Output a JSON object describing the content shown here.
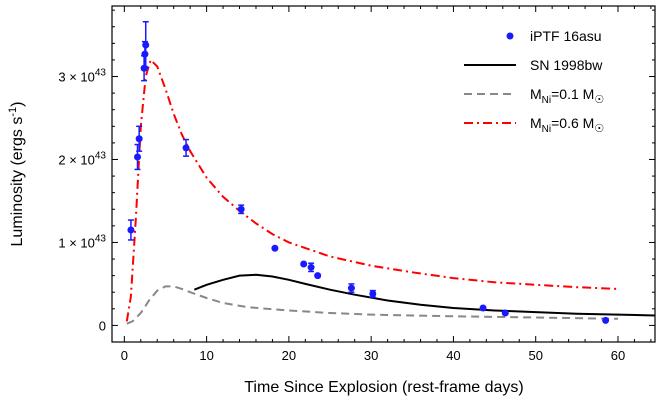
{
  "chart_data": {
    "type": "scatter",
    "xlabel": "Time Since Explosion (rest-frame days)",
    "ylabel": "Luminosity (ergs s",
    "ylabel_sup": "-1",
    "ylabel_close": ")",
    "xlim": [
      -1.5,
      64.5
    ],
    "ylim": [
      -0.2,
      3.85
    ],
    "x_ticks": [
      0,
      10,
      20,
      30,
      40,
      50,
      60
    ],
    "y_ticks": [
      {
        "value": 0,
        "label": "0",
        "exp": ""
      },
      {
        "value": 1,
        "label": "1 × 10",
        "exp": "43"
      },
      {
        "value": 2,
        "label": "2 × 10",
        "exp": "43"
      },
      {
        "value": 3,
        "label": "3 × 10",
        "exp": "43"
      }
    ],
    "y_unit": "10^43 erg/s",
    "grid": false,
    "legend_placement": "top-right",
    "legend": [
      {
        "key": "obs",
        "text": "iPTF 16asu",
        "sub": "",
        "suffix": ""
      },
      {
        "key": "sn98",
        "text": "SN 1998bw",
        "sub": "",
        "suffix": ""
      },
      {
        "key": "ni01",
        "text": "M",
        "sub": "Ni",
        "suffix": "=0.1 M",
        "sun": "☉"
      },
      {
        "key": "ni06",
        "text": "M",
        "sub": "Ni",
        "suffix": "=0.6 M",
        "sun": "☉"
      }
    ],
    "colors": {
      "obs": "#1a1aff",
      "sn98": "#000000",
      "ni01": "#888888",
      "ni06": "#ff0000"
    },
    "series": [
      {
        "name": "iPTF 16asu",
        "key": "obs",
        "style": "points",
        "points": [
          {
            "x": 0.8,
            "y": 1.15,
            "err": 0.12
          },
          {
            "x": 1.6,
            "y": 2.03,
            "err": 0.15
          },
          {
            "x": 1.8,
            "y": 2.25,
            "err": 0.15
          },
          {
            "x": 2.4,
            "y": 3.1,
            "err": 0.15
          },
          {
            "x": 2.5,
            "y": 3.27,
            "err": 0.15
          },
          {
            "x": 2.6,
            "y": 3.38,
            "err": 0.28
          },
          {
            "x": 7.5,
            "y": 2.14,
            "err": 0.1
          },
          {
            "x": 14.2,
            "y": 1.4,
            "err": 0.05
          },
          {
            "x": 18.3,
            "y": 0.93,
            "err": 0.0
          },
          {
            "x": 21.8,
            "y": 0.74,
            "err": 0.0
          },
          {
            "x": 22.7,
            "y": 0.7,
            "err": 0.05
          },
          {
            "x": 23.5,
            "y": 0.6,
            "err": 0.0
          },
          {
            "x": 27.6,
            "y": 0.45,
            "err": 0.05
          },
          {
            "x": 30.2,
            "y": 0.38,
            "err": 0.04
          },
          {
            "x": 43.6,
            "y": 0.21,
            "err": 0.0
          },
          {
            "x": 46.3,
            "y": 0.15,
            "err": 0.0
          },
          {
            "x": 58.5,
            "y": 0.06,
            "err": 0.0
          }
        ]
      },
      {
        "name": "SN 1998bw",
        "key": "sn98",
        "style": "solid",
        "points": [
          [
            8.5,
            0.43
          ],
          [
            10,
            0.49
          ],
          [
            12,
            0.55
          ],
          [
            14,
            0.6
          ],
          [
            16,
            0.61
          ],
          [
            18,
            0.59
          ],
          [
            20,
            0.55
          ],
          [
            22,
            0.5
          ],
          [
            25,
            0.43
          ],
          [
            28,
            0.37
          ],
          [
            32,
            0.3
          ],
          [
            36,
            0.25
          ],
          [
            40,
            0.21
          ],
          [
            45,
            0.18
          ],
          [
            50,
            0.16
          ],
          [
            55,
            0.14
          ],
          [
            60,
            0.13
          ],
          [
            64.5,
            0.12
          ]
        ]
      },
      {
        "name": "MNi=0.1 M☉",
        "key": "ni01",
        "style": "dashed",
        "points": [
          [
            0.3,
            0.02
          ],
          [
            1,
            0.05
          ],
          [
            2,
            0.15
          ],
          [
            3,
            0.3
          ],
          [
            4,
            0.42
          ],
          [
            5,
            0.47
          ],
          [
            6,
            0.47
          ],
          [
            7,
            0.44
          ],
          [
            8,
            0.4
          ],
          [
            10,
            0.33
          ],
          [
            12,
            0.27
          ],
          [
            15,
            0.22
          ],
          [
            20,
            0.18
          ],
          [
            25,
            0.15
          ],
          [
            30,
            0.13
          ],
          [
            35,
            0.12
          ],
          [
            40,
            0.11
          ],
          [
            50,
            0.095
          ],
          [
            60,
            0.08
          ]
        ]
      },
      {
        "name": "MNi=0.6 M☉",
        "key": "ni06",
        "style": "dashdot",
        "points": [
          [
            0.3,
            0.05
          ],
          [
            0.8,
            0.35
          ],
          [
            1.4,
            1.3
          ],
          [
            2.0,
            2.4
          ],
          [
            2.6,
            3.0
          ],
          [
            3.2,
            3.2
          ],
          [
            4,
            3.12
          ],
          [
            5,
            2.85
          ],
          [
            6,
            2.55
          ],
          [
            7,
            2.3
          ],
          [
            8,
            2.1
          ],
          [
            10,
            1.78
          ],
          [
            12,
            1.55
          ],
          [
            14,
            1.38
          ],
          [
            16,
            1.23
          ],
          [
            18,
            1.1
          ],
          [
            20,
            1.0
          ],
          [
            25,
            0.83
          ],
          [
            30,
            0.72
          ],
          [
            35,
            0.64
          ],
          [
            40,
            0.57
          ],
          [
            45,
            0.52
          ],
          [
            50,
            0.49
          ],
          [
            55,
            0.46
          ],
          [
            60,
            0.44
          ]
        ]
      }
    ]
  }
}
